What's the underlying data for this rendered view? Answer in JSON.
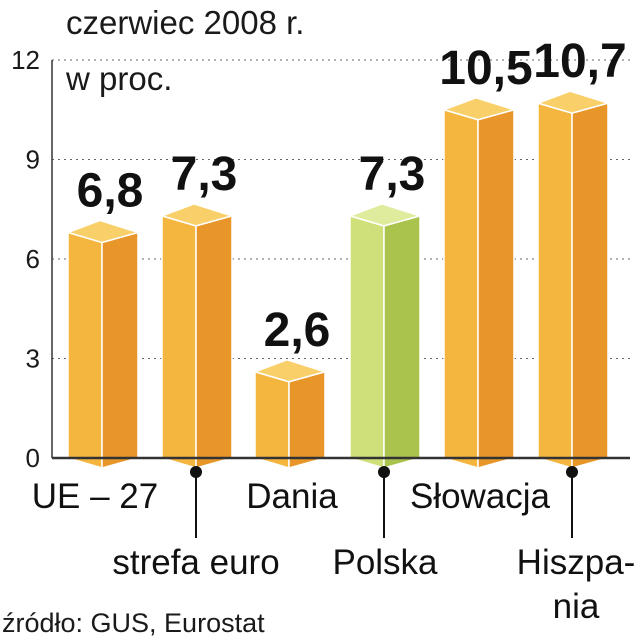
{
  "header": {
    "period": "czerwiec 2008 r.",
    "unit": "w proc."
  },
  "source": "źródło: GUS, Eurostat",
  "colors": {
    "orange_front": "#f4b63f",
    "orange_side": "#e8962a",
    "orange_top": "#f9cf6a",
    "green_front": "#cfe07a",
    "green_side": "#aac34d",
    "green_top": "#e0ec9d",
    "axis": "#333333",
    "grid": "#666666"
  },
  "chart_data": {
    "type": "bar",
    "title": "czerwiec 2008 r.",
    "ylabel": "w proc.",
    "categories": [
      "UE – 27",
      "strefa euro",
      "Dania",
      "Polska",
      "Słowacja",
      "Hiszpania"
    ],
    "values": [
      6.8,
      7.3,
      2.6,
      7.3,
      10.5,
      10.7
    ],
    "value_labels": [
      "6,8",
      "7,3",
      "2,6",
      "7,3",
      "10,5",
      "10,7"
    ],
    "highlight": "Polska",
    "ylim": [
      0,
      12
    ],
    "yticks": [
      0,
      3,
      6,
      9,
      12
    ],
    "grid": true
  }
}
